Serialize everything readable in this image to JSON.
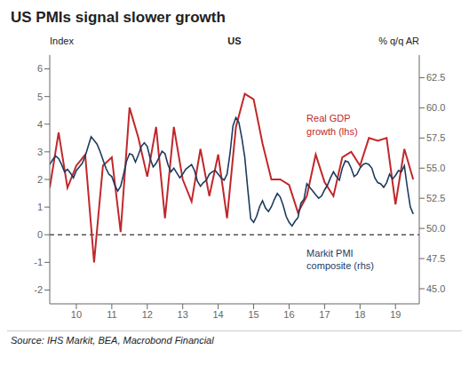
{
  "chart_data": {
    "type": "line",
    "title": "US PMIs signal slower growth",
    "subtitle": "US",
    "source": "Source: IHS Markit, BEA, Macrobond Financial",
    "ylabel": "Index",
    "y2label": "% q/q AR",
    "grid": false,
    "xlim": [
      9.0,
      19.42
    ],
    "xticks": [
      {
        "value": 9.75,
        "label": "10"
      },
      {
        "value": 10.75,
        "label": "11"
      },
      {
        "value": 11.75,
        "label": "12"
      },
      {
        "value": 12.75,
        "label": "13"
      },
      {
        "value": 13.75,
        "label": "14"
      },
      {
        "value": 14.75,
        "label": "15"
      },
      {
        "value": 15.75,
        "label": "16"
      },
      {
        "value": 16.75,
        "label": "17"
      },
      {
        "value": 17.75,
        "label": "18"
      },
      {
        "value": 18.75,
        "label": "19"
      }
    ],
    "ylim": [
      -2.5,
      6.5
    ],
    "yticks": [
      -2,
      -1,
      0,
      1,
      2,
      3,
      4,
      5,
      6
    ],
    "y2lim": [
      43.75,
      64.375
    ],
    "y2ticks": [
      {
        "value": 45.0,
        "label": "45.0"
      },
      47.5,
      {
        "value": 50.0,
        "label": "50.0"
      },
      52.5,
      {
        "value": 55.0,
        "label": "55.0"
      },
      57.5,
      {
        "value": 60.0,
        "label": "60.0"
      },
      62.5
    ],
    "reference_line": {
      "axis": "y",
      "value": 0,
      "line_style": "dashed",
      "color": "#000000"
    },
    "annotations": [
      {
        "text": "Real GDP\ngrowth (lhs)",
        "color": "#c0282b"
      },
      {
        "text": "Markit PMI\ncomposite (rhs)",
        "color": "#1e3a5f"
      }
    ],
    "series": [
      {
        "color": "#c0282b",
        "axis": "y",
        "x": [
          9.0,
          9.25,
          9.5,
          9.75,
          10.0,
          10.25,
          10.5,
          10.75,
          11.0,
          11.25,
          11.5,
          11.75,
          12.0,
          12.25,
          12.5,
          12.75,
          13.0,
          13.25,
          13.5,
          13.75,
          14.0,
          14.25,
          14.5,
          14.75,
          15.0,
          15.25,
          15.5,
          15.75,
          16.0,
          16.25,
          16.5,
          16.75,
          17.0,
          17.25,
          17.5,
          17.75,
          18.0,
          18.25,
          18.5,
          18.75,
          19.0,
          19.25
        ],
        "values": [
          1.7,
          3.7,
          1.7,
          2.5,
          2.9,
          -1.0,
          2.5,
          2.8,
          0.1,
          4.6,
          3.5,
          2.1,
          3.9,
          0.6,
          3.9,
          2.0,
          1.2,
          3.1,
          1.4,
          2.9,
          0.6,
          3.9,
          5.1,
          4.9,
          3.3,
          2.0,
          2.0,
          1.8,
          0.8,
          1.4,
          2.9,
          1.9,
          1.4,
          2.8,
          3.0,
          2.5,
          3.5,
          3.4,
          3.5,
          1.1,
          3.1,
          2.0
        ]
      },
      {
        "color": "#1e3a5f",
        "axis": "y2",
        "x": [
          9.0,
          9.083,
          9.167,
          9.25,
          9.333,
          9.417,
          9.5,
          9.583,
          9.667,
          9.75,
          9.833,
          9.917,
          10.0,
          10.083,
          10.167,
          10.25,
          10.333,
          10.417,
          10.5,
          10.583,
          10.667,
          10.75,
          10.833,
          10.917,
          11.0,
          11.083,
          11.167,
          11.25,
          11.333,
          11.417,
          11.5,
          11.583,
          11.667,
          11.75,
          11.833,
          11.917,
          12.0,
          12.083,
          12.167,
          12.25,
          12.333,
          12.417,
          12.5,
          12.583,
          12.667,
          12.75,
          12.833,
          12.917,
          13.0,
          13.083,
          13.167,
          13.25,
          13.333,
          13.417,
          13.5,
          13.583,
          13.667,
          13.75,
          13.833,
          13.917,
          14.0,
          14.083,
          14.167,
          14.25,
          14.333,
          14.417,
          14.5,
          14.583,
          14.667,
          14.75,
          14.833,
          14.917,
          15.0,
          15.083,
          15.167,
          15.25,
          15.333,
          15.417,
          15.5,
          15.583,
          15.667,
          15.75,
          15.833,
          15.917,
          16.0,
          16.083,
          16.167,
          16.25,
          16.333,
          16.417,
          16.5,
          16.583,
          16.667,
          16.75,
          16.833,
          16.917,
          17.0,
          17.083,
          17.167,
          17.25,
          17.333,
          17.417,
          17.5,
          17.583,
          17.667,
          17.75,
          17.833,
          17.917,
          18.0,
          18.083,
          18.167,
          18.25,
          18.333,
          18.417,
          18.5,
          18.583,
          18.667,
          18.75,
          18.833,
          18.917,
          19.0,
          19.083,
          19.167,
          19.25
        ],
        "values": [
          55.3,
          55.7,
          56.0,
          55.8,
          55.3,
          54.7,
          54.9,
          54.6,
          54.2,
          54.8,
          55.1,
          55.4,
          56.0,
          56.8,
          57.6,
          57.3,
          57.0,
          56.4,
          55.7,
          55.0,
          54.5,
          54.3,
          53.6,
          53.1,
          53.5,
          54.5,
          55.6,
          56.2,
          56.1,
          55.5,
          56.1,
          56.8,
          57.1,
          56.8,
          55.8,
          55.1,
          55.4,
          55.9,
          56.4,
          56.2,
          55.3,
          54.7,
          55.0,
          54.6,
          54.2,
          54.5,
          54.9,
          55.1,
          55.3,
          54.8,
          53.9,
          53.5,
          53.8,
          54.0,
          54.5,
          54.7,
          54.8,
          54.5,
          54.2,
          54.0,
          54.5,
          56.2,
          58.5,
          59.2,
          58.8,
          57.5,
          55.9,
          53.3,
          50.8,
          50.5,
          51.0,
          51.8,
          52.3,
          51.7,
          51.4,
          51.8,
          52.4,
          52.9,
          52.6,
          51.9,
          51.0,
          50.5,
          50.2,
          50.6,
          50.9,
          52.1,
          52.4,
          53.7,
          53.4,
          53.1,
          52.8,
          52.5,
          52.7,
          53.2,
          53.6,
          54.2,
          54.7,
          54.3,
          54.0,
          55.0,
          55.6,
          55.5,
          55.0,
          54.3,
          54.5,
          55.0,
          55.3,
          55.4,
          55.3,
          55.0,
          54.2,
          53.8,
          53.7,
          53.4,
          53.8,
          54.5,
          54.1,
          54.4,
          54.8,
          54.7,
          55.2,
          53.4,
          51.8,
          51.2
        ]
      }
    ]
  }
}
